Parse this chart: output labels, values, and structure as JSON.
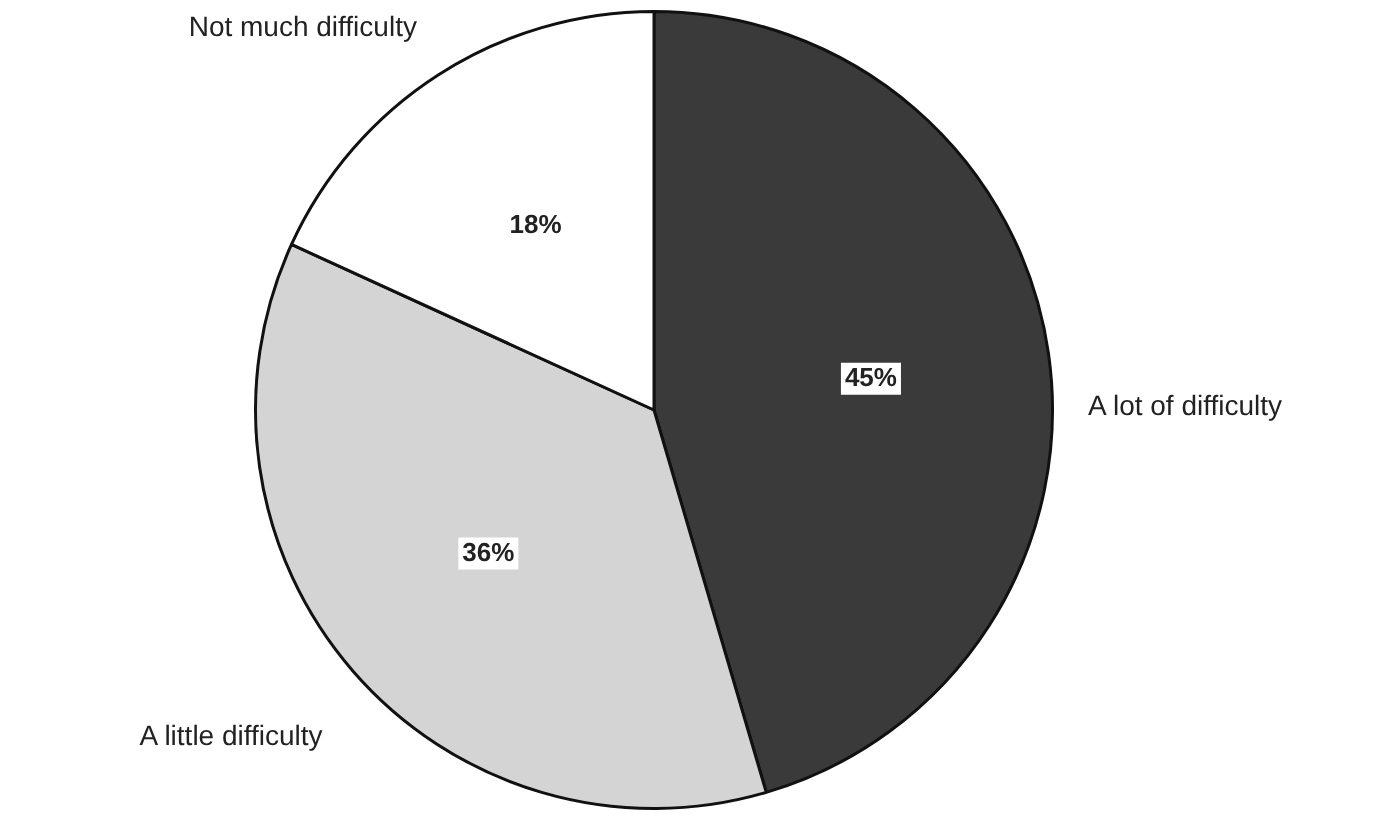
{
  "chart_data": {
    "type": "pie",
    "categories": [
      "A lot of difficulty",
      "A little difficulty",
      "Not much difficulty"
    ],
    "values": [
      45,
      36,
      18
    ],
    "colors": [
      "#3a3a3a",
      "#d4d4d4",
      "#ffffff"
    ],
    "value_labels": [
      "45%",
      "36%",
      "18%"
    ],
    "legend": false
  }
}
